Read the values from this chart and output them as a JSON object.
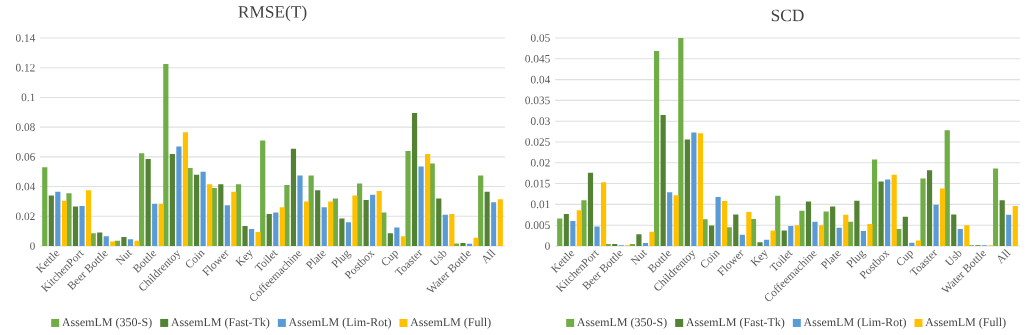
{
  "chart_data": [
    {
      "type": "bar",
      "title": "RMSE(T)",
      "categories": [
        "Kettle",
        "KitchenPort",
        "Beer Bottle",
        "Nut",
        "Bottle",
        "Childrentoy",
        "Coin",
        "Flower",
        "Key",
        "Toilet",
        "Coffeemachine",
        "Plate",
        "Plug",
        "Postbox",
        "Cup",
        "Toaster",
        "Usb",
        "Water Bottle",
        "All"
      ],
      "series": [
        {
          "name": "AssemLM (350-S)",
          "color": "#70ad47",
          "values": [
            0.053,
            0.0355,
            0.0085,
            0.0035,
            0.0625,
            0.1225,
            0.0525,
            0.039,
            0.0415,
            0.071,
            0.041,
            0.0475,
            0.032,
            0.042,
            0.0225,
            0.064,
            0.0555,
            0.0017,
            0.0475
          ]
        },
        {
          "name": "AssemLM (Fast-Tk)",
          "color": "#548235",
          "values": [
            0.034,
            0.0265,
            0.009,
            0.006,
            0.0585,
            0.062,
            0.048,
            0.0415,
            0.0135,
            0.0215,
            0.0655,
            0.0375,
            0.0185,
            0.031,
            0.0085,
            0.0895,
            0.032,
            0.002,
            0.0365
          ]
        },
        {
          "name": "AssemLM (Lim-Rot)",
          "color": "#5b9bd5",
          "values": [
            0.0365,
            0.027,
            0.0065,
            0.0045,
            0.0285,
            0.067,
            0.05,
            0.0275,
            0.0115,
            0.0225,
            0.0475,
            0.026,
            0.016,
            0.0345,
            0.0125,
            0.0535,
            0.021,
            0.0015,
            0.0295
          ]
        },
        {
          "name": "AssemLM (Full)",
          "color": "#ffc000",
          "values": [
            0.0305,
            0.0375,
            0.003,
            0.0035,
            0.0285,
            0.0765,
            0.0415,
            0.0365,
            0.0095,
            0.026,
            0.03,
            0.03,
            0.034,
            0.037,
            0.0065,
            0.062,
            0.0215,
            0.0055,
            0.0315
          ]
        }
      ],
      "ylim": [
        0,
        0.14
      ],
      "yticks": [
        0,
        0.02,
        0.04,
        0.06,
        0.08,
        0.1,
        0.12,
        0.14
      ],
      "grid": "y",
      "legend": "bottom"
    },
    {
      "type": "bar",
      "title": "SCD",
      "categories": [
        "Kettle",
        "KitchenPort",
        "Beer Bottle",
        "Nut",
        "Bottle",
        "Childrentoy",
        "Coin",
        "Flower",
        "Key",
        "Toilet",
        "Coffeemachine",
        "Plate",
        "Plug",
        "Postbox",
        "Cup",
        "Toaster",
        "Usb",
        "Water Bottle",
        "All"
      ],
      "series": [
        {
          "name": "AssemLM (350-S)",
          "color": "#70ad47",
          "values": [
            0.0066,
            0.011,
            0.0005,
            0.0005,
            0.0469,
            0.05,
            0.0064,
            0.0045,
            0.0065,
            0.0121,
            0.0085,
            0.0083,
            0.0058,
            0.0208,
            0.0041,
            0.0162,
            0.0278,
            0.0002,
            0.0186
          ]
        },
        {
          "name": "AssemLM (Fast-Tk)",
          "color": "#548235",
          "values": [
            0.0077,
            0.0176,
            0.0005,
            0.0028,
            0.0315,
            0.0256,
            0.0049,
            0.0076,
            0.0009,
            0.0037,
            0.0107,
            0.0095,
            0.0109,
            0.0155,
            0.007,
            0.0182,
            0.0076,
            0.0002,
            0.011
          ]
        },
        {
          "name": "AssemLM (Lim-Rot)",
          "color": "#5b9bd5",
          "values": [
            0.006,
            0.0047,
            0.0002,
            0.0007,
            0.0129,
            0.0273,
            0.0118,
            0.0027,
            0.0015,
            0.0048,
            0.0058,
            0.0044,
            0.0036,
            0.016,
            0.0008,
            0.0099,
            0.0041,
            0.0002,
            0.0075
          ]
        },
        {
          "name": "AssemLM (Full)",
          "color": "#ffc000",
          "values": [
            0.0086,
            0.0153,
            0.0002,
            0.0034,
            0.0122,
            0.0271,
            0.0108,
            0.0082,
            0.0037,
            0.005,
            0.005,
            0.0075,
            0.0053,
            0.0171,
            0.0013,
            0.0138,
            0.005,
            0.0002,
            0.0096
          ]
        }
      ],
      "ylim": [
        0,
        0.05
      ],
      "yticks": [
        0,
        0.005,
        0.01,
        0.015,
        0.02,
        0.025,
        0.03,
        0.035,
        0.04,
        0.045,
        0.05
      ],
      "grid": "y",
      "legend": "bottom"
    }
  ]
}
